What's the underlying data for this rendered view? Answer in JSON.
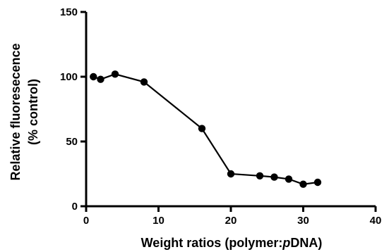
{
  "chart_data": {
    "type": "line",
    "xlabel": {
      "text": "Weight ratios (polymer:",
      "italic_part": "p",
      "suffix": "DNA)"
    },
    "ylabel": {
      "line1": "Relative fluoresecence",
      "line2": "(% control)"
    },
    "xlim": [
      0,
      40
    ],
    "ylim": [
      0,
      150
    ],
    "xticks": [
      0,
      10,
      20,
      30,
      40
    ],
    "yticks": [
      0,
      50,
      100,
      150
    ],
    "grid": false,
    "legend": "none",
    "series": [
      {
        "x": [
          1,
          2,
          4,
          8,
          16,
          20,
          24,
          26,
          28,
          30,
          32
        ],
        "y": [
          100,
          98,
          102,
          96,
          60,
          25,
          23.5,
          22.5,
          21,
          17,
          18.5
        ]
      }
    ],
    "colors": {
      "line": "#000000",
      "marker": "#000000"
    }
  }
}
